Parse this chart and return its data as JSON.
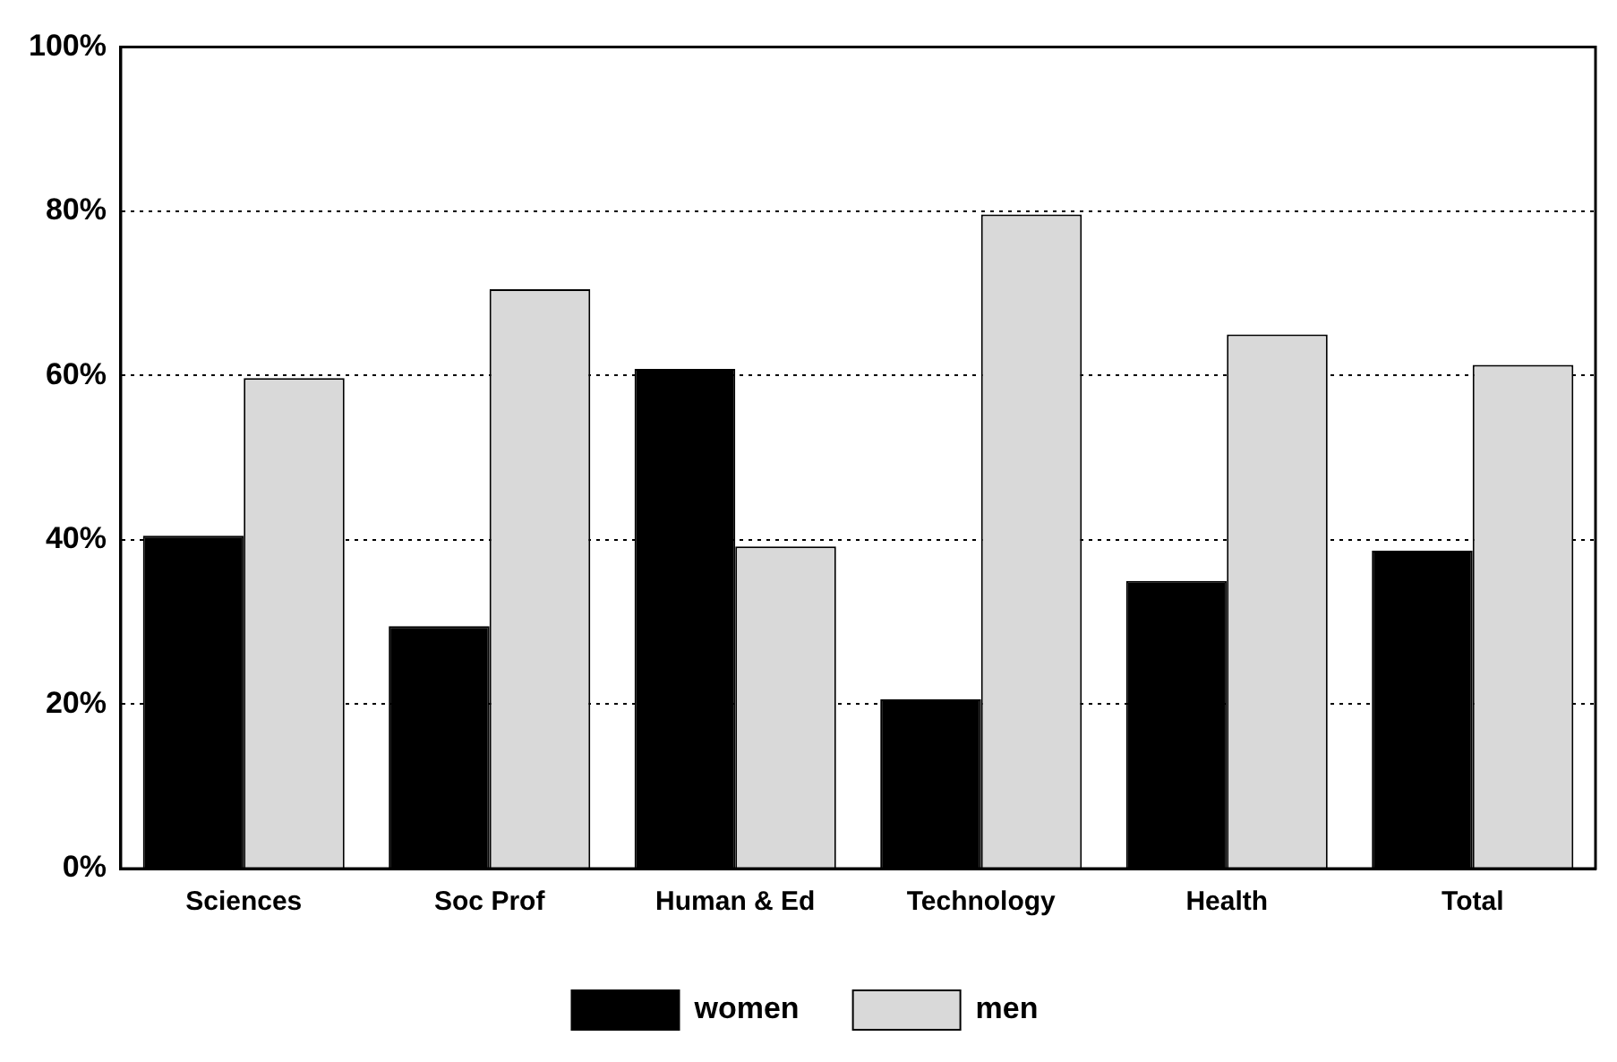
{
  "chart_data": {
    "type": "bar",
    "categories": [
      "Sciences",
      "Soc Prof",
      "Human & Ed",
      "Technology",
      "Health",
      "Total"
    ],
    "series": [
      {
        "name": "women",
        "color": "#000000",
        "values": [
          40.5,
          29.5,
          60.8,
          20.6,
          35,
          38.7
        ]
      },
      {
        "name": "men",
        "color": "#d9d9d9",
        "values": [
          59.7,
          70.5,
          39.2,
          79.6,
          65,
          61.3
        ]
      }
    ],
    "ylim": [
      0,
      100
    ],
    "yticks": [
      {
        "value": 0,
        "label": "0%"
      },
      {
        "value": 20,
        "label": "20%"
      },
      {
        "value": 40,
        "label": "40%"
      },
      {
        "value": 60,
        "label": "60%"
      },
      {
        "value": 80,
        "label": "80%"
      },
      {
        "value": 100,
        "label": "100%"
      }
    ],
    "grid": "y",
    "legend": "bottom"
  }
}
